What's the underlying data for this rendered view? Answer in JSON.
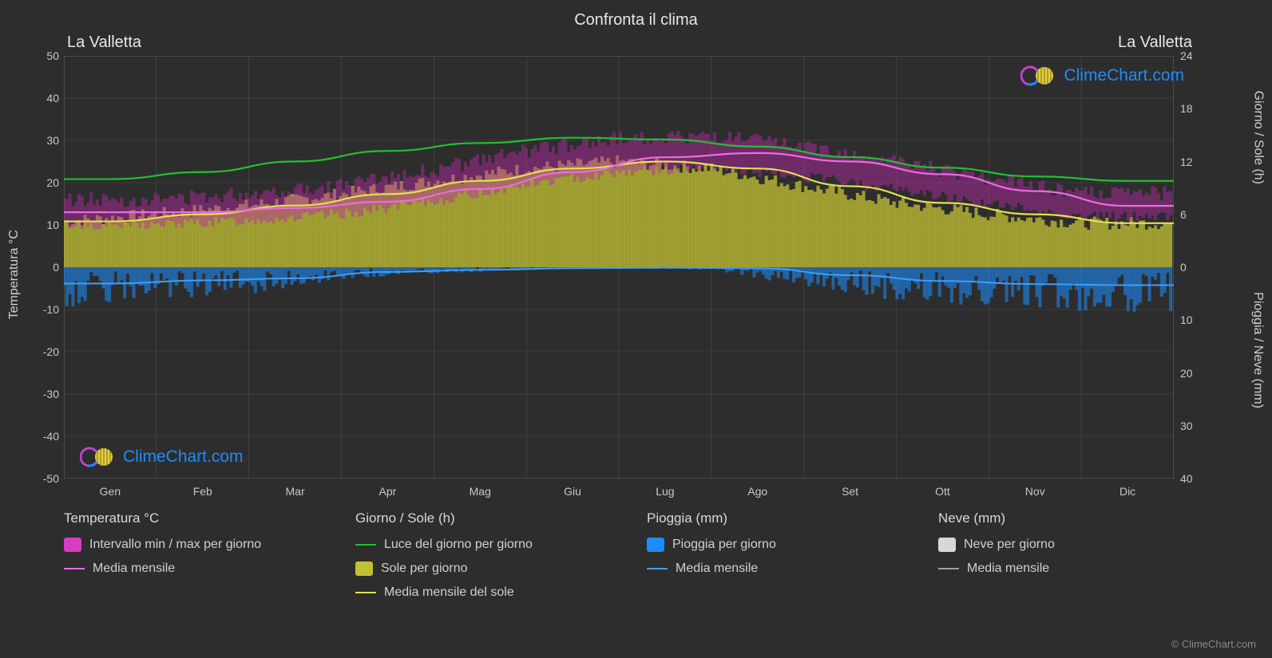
{
  "title": "Confronta il clima",
  "city_left": "La Valletta",
  "city_right": "La Valletta",
  "axes": {
    "y_left_label": "Temperatura °C",
    "y_right_top_label": "Giorno / Sole (h)",
    "y_right_bot_label": "Pioggia / Neve (mm)",
    "y_left_min": -50,
    "y_left_max": 50,
    "y_left_step": 10,
    "y_right_top_min": 0,
    "y_right_top_max": 24,
    "y_right_top_step": 6,
    "y_right_bot_min": 0,
    "y_right_bot_max": 40,
    "y_right_bot_step": 10,
    "months": [
      "Gen",
      "Feb",
      "Mar",
      "Apr",
      "Mag",
      "Giu",
      "Lug",
      "Ago",
      "Set",
      "Ott",
      "Nov",
      "Dic"
    ]
  },
  "colors": {
    "bg": "#2d2d2d",
    "grid": "#5a5a5a",
    "border": "#6a6a6a",
    "text": "#d8d8d8",
    "temp_range_fill": "#d63cc4",
    "temp_range_band": "#b82aa6",
    "temp_avg_line": "#ea6ce0",
    "daylight_line": "#22c030",
    "sun_fill": "#c2c033",
    "sun_avg_line": "#e3e050",
    "rain_fill": "#1b8dff",
    "rain_avg_line": "#3aa0ff",
    "snow_fill": "#d8d8d8",
    "snow_avg_line": "#a0a0a0",
    "watermark_text": "#1b8dff"
  },
  "series": {
    "temp_avg": [
      13.0,
      13.0,
      14.0,
      15.5,
      18.5,
      22.5,
      26.0,
      27.0,
      25.0,
      22.0,
      18.0,
      14.5
    ],
    "temp_min": [
      10.0,
      10.0,
      11.0,
      12.5,
      15.5,
      19.5,
      22.5,
      23.5,
      21.5,
      18.5,
      15.0,
      12.0
    ],
    "temp_max": [
      16.0,
      16.0,
      17.5,
      19.5,
      23.0,
      27.5,
      30.5,
      31.0,
      28.5,
      25.0,
      21.0,
      17.5
    ],
    "daylight_h": [
      10.0,
      10.8,
      12.0,
      13.2,
      14.1,
      14.7,
      14.5,
      13.7,
      12.5,
      11.3,
      10.3,
      9.8
    ],
    "sun_avg_h": [
      5.2,
      6.0,
      7.0,
      8.3,
      9.8,
      11.2,
      12.0,
      11.2,
      9.2,
      7.3,
      6.0,
      5.0
    ],
    "rain_avg_mm": [
      3.1,
      2.5,
      2.1,
      0.9,
      0.5,
      0.2,
      0.1,
      0.2,
      1.5,
      2.6,
      3.2,
      3.4
    ],
    "snow_avg_mm": [
      0,
      0,
      0,
      0,
      0,
      0,
      0,
      0,
      0,
      0,
      0,
      0
    ]
  },
  "legend": {
    "temp_header": "Temperatura °C",
    "temp_range": "Intervallo min / max per giorno",
    "temp_avg": "Media mensile",
    "sun_header": "Giorno / Sole (h)",
    "daylight": "Luce del giorno per giorno",
    "sun_fill": "Sole per giorno",
    "sun_avg": "Media mensile del sole",
    "rain_header": "Pioggia (mm)",
    "rain_daily": "Pioggia per giorno",
    "rain_avg": "Media mensile",
    "snow_header": "Neve (mm)",
    "snow_daily": "Neve per giorno",
    "snow_avg": "Media mensile"
  },
  "watermark": "ClimeChart.com",
  "copyright": "© ClimeChart.com"
}
